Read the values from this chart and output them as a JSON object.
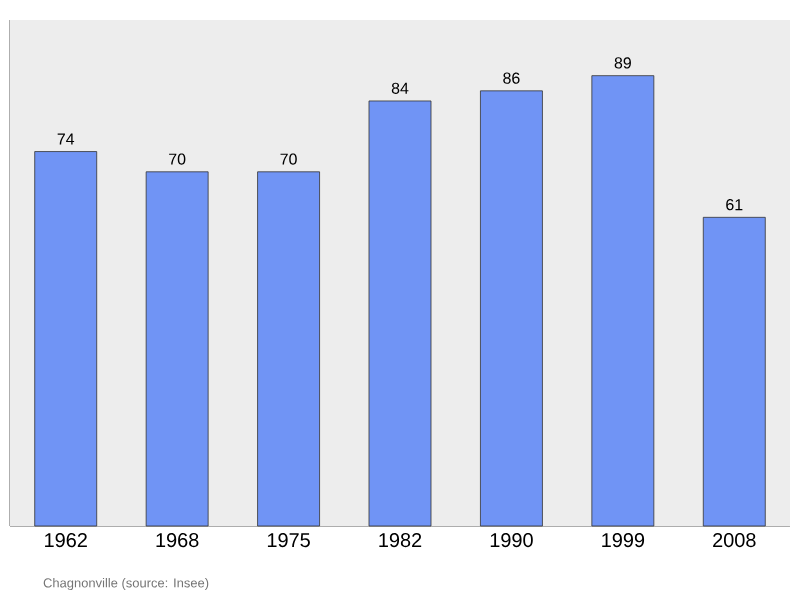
{
  "chart_data": {
    "type": "bar",
    "categories": [
      "1962",
      "1968",
      "1975",
      "1982",
      "1990",
      "1999",
      "2008"
    ],
    "values": [
      74,
      70,
      70,
      84,
      86,
      89,
      61
    ],
    "color": "#7094f5",
    "data_labels": true,
    "ylim": [
      0,
      100
    ],
    "annotations": [
      "Chagnonville    (source: Insee)"
    ]
  }
}
